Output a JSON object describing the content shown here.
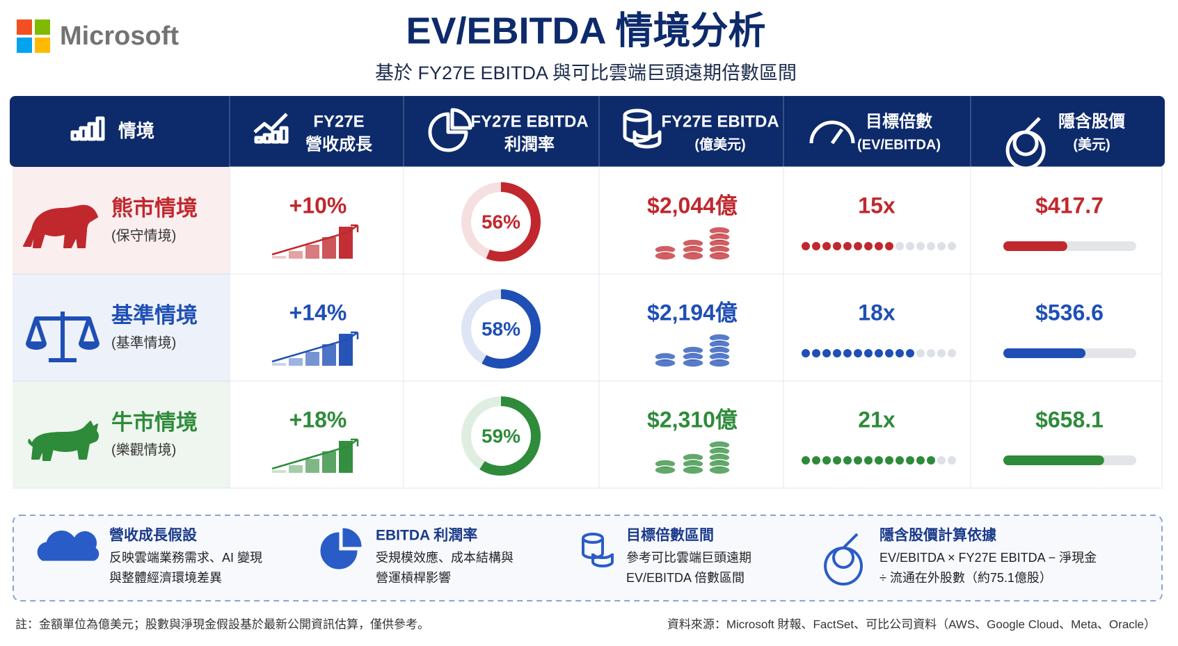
{
  "header": {
    "logo": "Microsoft",
    "title": "EV/EBITDA 情境分析",
    "subtitle": "基於 FY27E EBITDA 與可比雲端巨頭遠期倍數區間"
  },
  "table": {
    "columns": [
      {
        "title": "情境"
      },
      {
        "title": "FY27E",
        "subtitle": "營收成長"
      },
      {
        "title": "FY27E EBITDA",
        "subtitle": "利潤率"
      },
      {
        "title": "FY27E EBITDA",
        "subtitle": "(億美元)"
      },
      {
        "title": "目標倍數",
        "subtitle": "(EV/EBITDA)"
      },
      {
        "title": "隱含股價",
        "subtitle": "(美元)"
      }
    ],
    "rows": [
      {
        "name": "熊市情境",
        "note": "(保守情境)",
        "color": "#c0282d",
        "growth": {
          "value": 10,
          "label": "+10%"
        },
        "margin": {
          "value": 56,
          "label": "56%"
        },
        "ebitda": "$2,044億",
        "multiple": {
          "value": 15,
          "label": "15x"
        },
        "price": {
          "value": 417.7,
          "label": "$417.7"
        }
      },
      {
        "name": "基準情境",
        "note": "(基準情境)",
        "color": "#1f4fb5",
        "growth": {
          "value": 14,
          "label": "+14%"
        },
        "margin": {
          "value": 58,
          "label": "58%"
        },
        "ebitda": "$2,194億",
        "multiple": {
          "value": 18,
          "label": "18x"
        },
        "price": {
          "value": 536.6,
          "label": "$536.6"
        }
      },
      {
        "name": "牛市情境",
        "note": "(樂觀情境)",
        "color": "#2e8b3a",
        "growth": {
          "value": 18,
          "label": "+18%"
        },
        "margin": {
          "value": 59,
          "label": "59%"
        },
        "ebitda": "$2,310億",
        "multiple": {
          "value": 21,
          "label": "21x"
        },
        "price": {
          "value": 658.1,
          "label": "$658.1"
        }
      }
    ]
  },
  "notes": [
    {
      "title": "營收成長假設",
      "lines": [
        "反映雲端業務需求、AI 變現",
        "與整體經濟環境差異"
      ]
    },
    {
      "title": "EBITDA 利潤率",
      "lines": [
        "受規模效應、成本結構與",
        "營運槓桿影響"
      ]
    },
    {
      "title": "目標倍數區間",
      "lines": [
        "參考可比雲端巨頭遠期",
        "EV/EBITDA 倍數區間"
      ]
    },
    {
      "title": "隱含股價計算依據",
      "lines": [
        "EV/EBITDA × FY27E EBITDA − 淨現金",
        "÷ 流通在外股數（約75.1億股）"
      ]
    }
  ],
  "footer": {
    "left": "註：金額單位為億美元；股數與淨現金假設基於最新公開資訊估算，僅供參考。",
    "right": "資料來源：Microsoft 財報、FactSet、可比公司資料（AWS、Google Cloud、Meta、Oracle）"
  }
}
